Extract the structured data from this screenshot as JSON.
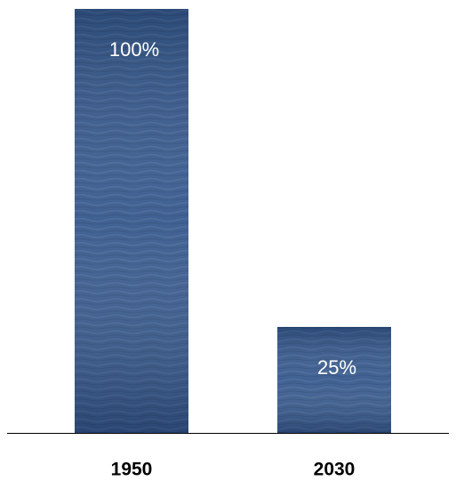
{
  "chart_data": {
    "type": "bar",
    "categories": [
      "1950",
      "2030"
    ],
    "values": [
      100,
      25
    ],
    "value_labels": [
      "100%",
      "25%"
    ],
    "color": "#36598d"
  }
}
